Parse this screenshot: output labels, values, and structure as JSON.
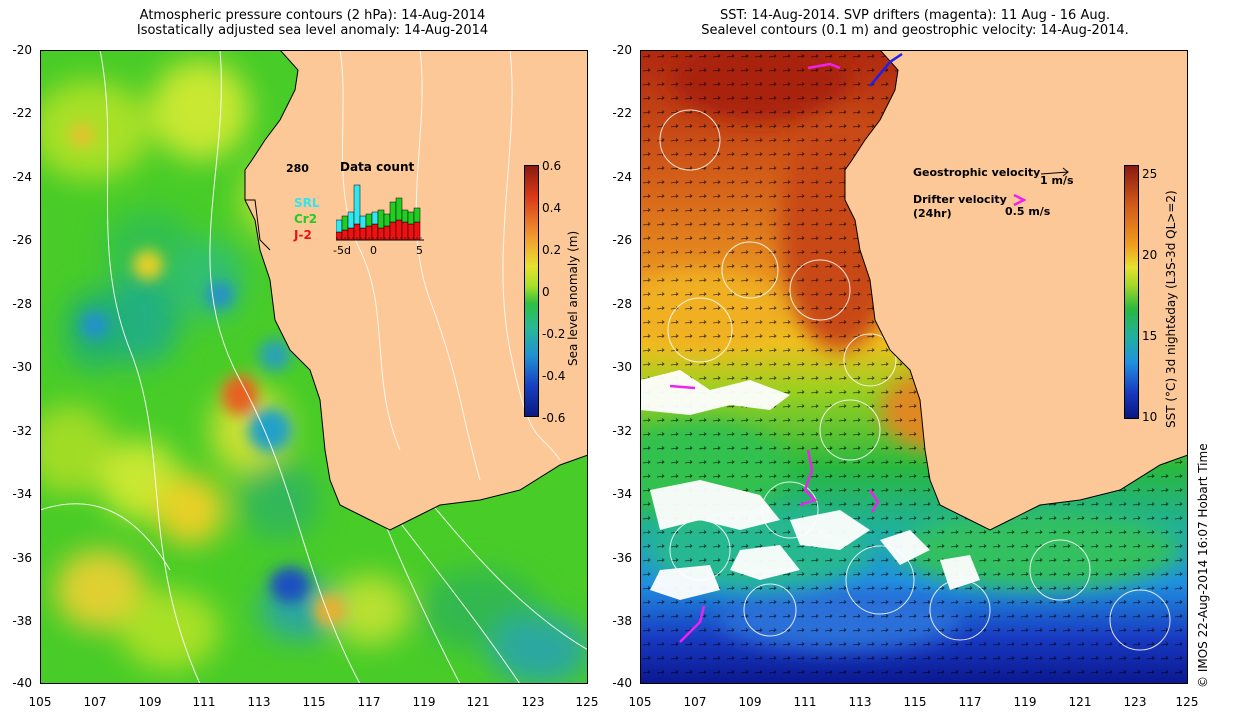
{
  "left_panel": {
    "title_line1": "Atmospheric pressure contours (2 hPa): 14-Aug-2014",
    "title_line2": "Isostatically adjusted sea level anomaly: 14-Aug-2014",
    "colorbar": {
      "label": "Sea level anomaly (m)",
      "ticks": [
        "0.6",
        "0.4",
        "0.2",
        "0",
        "-0.2",
        "-0.4",
        "-0.6"
      ]
    },
    "inset": {
      "title": "Data count",
      "max_label": "280",
      "x_ticks": [
        "-5d",
        "0",
        "5"
      ],
      "legend": [
        {
          "label": "SRL",
          "color": "#33e6ee"
        },
        {
          "label": "Cr2",
          "color": "#22cc22"
        },
        {
          "label": "J-2",
          "color": "#ee1111"
        }
      ]
    }
  },
  "right_panel": {
    "title_line1": "SST: 14-Aug-2014. SVP drifters (magenta): 11 Aug - 16 Aug.",
    "title_line2": "Sealevel contours (0.1 m) and geostrophic velocity: 14-Aug-2014.",
    "geostrophic_label": "Geostrophic velocity",
    "geostrophic_scale": "1 m/s",
    "drifter_label": "Drifter velocity",
    "drifter_sub": "(24hr)",
    "drifter_scale": "0.5 m/s",
    "colorbar": {
      "label": "SST (°C) 3d night&day (L3S-3d QL>=2)",
      "ticks": [
        "25",
        "20",
        "15",
        "10"
      ]
    }
  },
  "y_ticks": [
    "-20",
    "-22",
    "-24",
    "-26",
    "-28",
    "-30",
    "-32",
    "-34",
    "-36",
    "-38",
    "-40"
  ],
  "x_ticks": [
    "105",
    "107",
    "109",
    "111",
    "113",
    "115",
    "117",
    "119",
    "121",
    "123",
    "125"
  ],
  "credit": "© IMOS 22-Aug-2014 16:07 Hobart Time",
  "colors": {
    "land": "#fcc898",
    "sla_green": "#44cc22",
    "sst_red": "#b83010",
    "drifter": "#ee22ee",
    "inset_ceiling": "#ffffff"
  }
}
